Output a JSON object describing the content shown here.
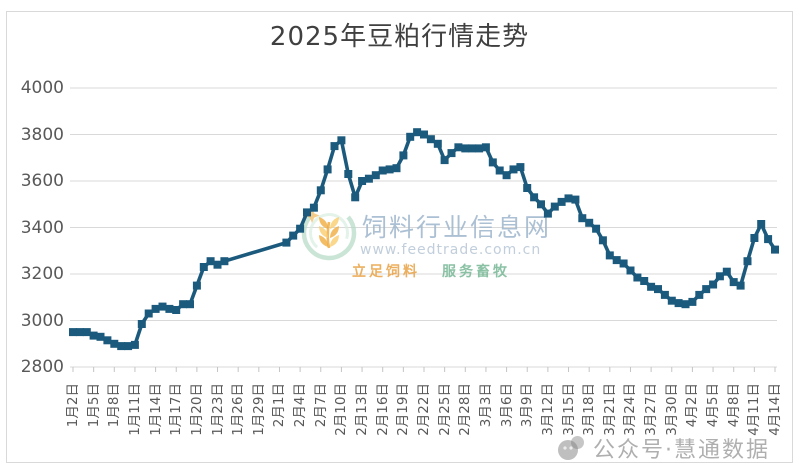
{
  "title": "2025年豆粕行情走势",
  "chart_data": {
    "type": "line",
    "title": "2025年豆粕行情走势",
    "xlabel": "",
    "ylabel": "",
    "ylim": [
      2800,
      4000
    ],
    "ytick_step": 200,
    "x_label_interval": 3,
    "grid": true,
    "legend": false,
    "line_color": "#1c5a7d",
    "marker": "square",
    "points": [
      [
        "1月2日",
        2950
      ],
      [
        "1月3日",
        2950
      ],
      [
        "1月4日",
        2950
      ],
      [
        "1月5日",
        2935
      ],
      [
        "1月6日",
        2930
      ],
      [
        "1月7日",
        2915
      ],
      [
        "1月8日",
        2900
      ],
      [
        "1月9日",
        2890
      ],
      [
        "1月10日",
        2890
      ],
      [
        "1月11日",
        2895
      ],
      [
        "1月12日",
        2985
      ],
      [
        "1月13日",
        3030
      ],
      [
        "1月14日",
        3050
      ],
      [
        "1月15日",
        3060
      ],
      [
        "1月16日",
        3050
      ],
      [
        "1月17日",
        3045
      ],
      [
        "1月18日",
        3070
      ],
      [
        "1月19日",
        3070
      ],
      [
        "1月20日",
        3150
      ],
      [
        "1月21日",
        3230
      ],
      [
        "1月22日",
        3255
      ],
      [
        "1月23日",
        3240
      ],
      [
        "1月24日",
        3255
      ],
      [
        "1月25日",
        null
      ],
      [
        "1月26日",
        null
      ],
      [
        "1月27日",
        null
      ],
      [
        "1月28日",
        null
      ],
      [
        "1月29日",
        null
      ],
      [
        "1月30日",
        null
      ],
      [
        "1月31日",
        null
      ],
      [
        "2月1日",
        null
      ],
      [
        "2月2日",
        3335
      ],
      [
        "2月3日",
        3365
      ],
      [
        "2月4日",
        3395
      ],
      [
        "2月5日",
        3465
      ],
      [
        "2月6日",
        3485
      ],
      [
        "2月7日",
        3560
      ],
      [
        "2月8日",
        3650
      ],
      [
        "2月9日",
        3750
      ],
      [
        "2月10日",
        3775
      ],
      [
        "2月11日",
        3630
      ],
      [
        "2月12日",
        3530
      ],
      [
        "2月13日",
        3600
      ],
      [
        "2月14日",
        3610
      ],
      [
        "2月15日",
        3625
      ],
      [
        "2月16日",
        3645
      ],
      [
        "2月17日",
        3650
      ],
      [
        "2月18日",
        3655
      ],
      [
        "2月19日",
        3710
      ],
      [
        "2月20日",
        3790
      ],
      [
        "2月21日",
        3810
      ],
      [
        "2月22日",
        3800
      ],
      [
        "2月23日",
        3780
      ],
      [
        "2月24日",
        3760
      ],
      [
        "2月25日",
        3690
      ],
      [
        "2月26日",
        3720
      ],
      [
        "2月27日",
        3745
      ],
      [
        "2月28日",
        3740
      ],
      [
        "3月1日",
        3740
      ],
      [
        "3月2日",
        3740
      ],
      [
        "3月3日",
        3745
      ],
      [
        "3月4日",
        3680
      ],
      [
        "3月5日",
        3645
      ],
      [
        "3月6日",
        3625
      ],
      [
        "3月7日",
        3650
      ],
      [
        "3月8日",
        3660
      ],
      [
        "3月9日",
        3570
      ],
      [
        "3月10日",
        3530
      ],
      [
        "3月11日",
        3500
      ],
      [
        "3月12日",
        3460
      ],
      [
        "3月13日",
        3490
      ],
      [
        "3月14日",
        3510
      ],
      [
        "3月15日",
        3525
      ],
      [
        "3月16日",
        3520
      ],
      [
        "3月17日",
        3440
      ],
      [
        "3月18日",
        3420
      ],
      [
        "3月19日",
        3395
      ],
      [
        "3月20日",
        3345
      ],
      [
        "3月21日",
        3280
      ],
      [
        "3月22日",
        3260
      ],
      [
        "3月23日",
        3245
      ],
      [
        "3月24日",
        3215
      ],
      [
        "3月25日",
        3185
      ],
      [
        "3月26日",
        3170
      ],
      [
        "3月27日",
        3145
      ],
      [
        "3月28日",
        3135
      ],
      [
        "3月29日",
        3110
      ],
      [
        "3月30日",
        3085
      ],
      [
        "3月31日",
        3075
      ],
      [
        "4月1日",
        3070
      ],
      [
        "4月2日",
        3080
      ],
      [
        "4月3日",
        3110
      ],
      [
        "4月4日",
        3135
      ],
      [
        "4月5日",
        3155
      ],
      [
        "4月6日",
        3190
      ],
      [
        "4月7日",
        3210
      ],
      [
        "4月8日",
        3165
      ],
      [
        "4月9日",
        3150
      ],
      [
        "4月10日",
        3255
      ],
      [
        "4月11日",
        3355
      ],
      [
        "4月12日",
        3415
      ],
      [
        "4月13日",
        3350
      ],
      [
        "4月14日",
        3305
      ]
    ]
  },
  "watermark_center": {
    "site_name": "饲料行业信息网",
    "site_url": "www.feedtrade.com.cn",
    "slogan_left": "立足饲料",
    "slogan_right": "服务畜牧"
  },
  "watermark_bottom": {
    "text": "公众号·慧通数据"
  },
  "colors": {
    "line": "#1c5a7d",
    "grid": "#d9d9d9",
    "tick": "#c4c4c4",
    "axis_text": "#595959",
    "title_text": "#404040",
    "frame": "#d9d9d9"
  }
}
